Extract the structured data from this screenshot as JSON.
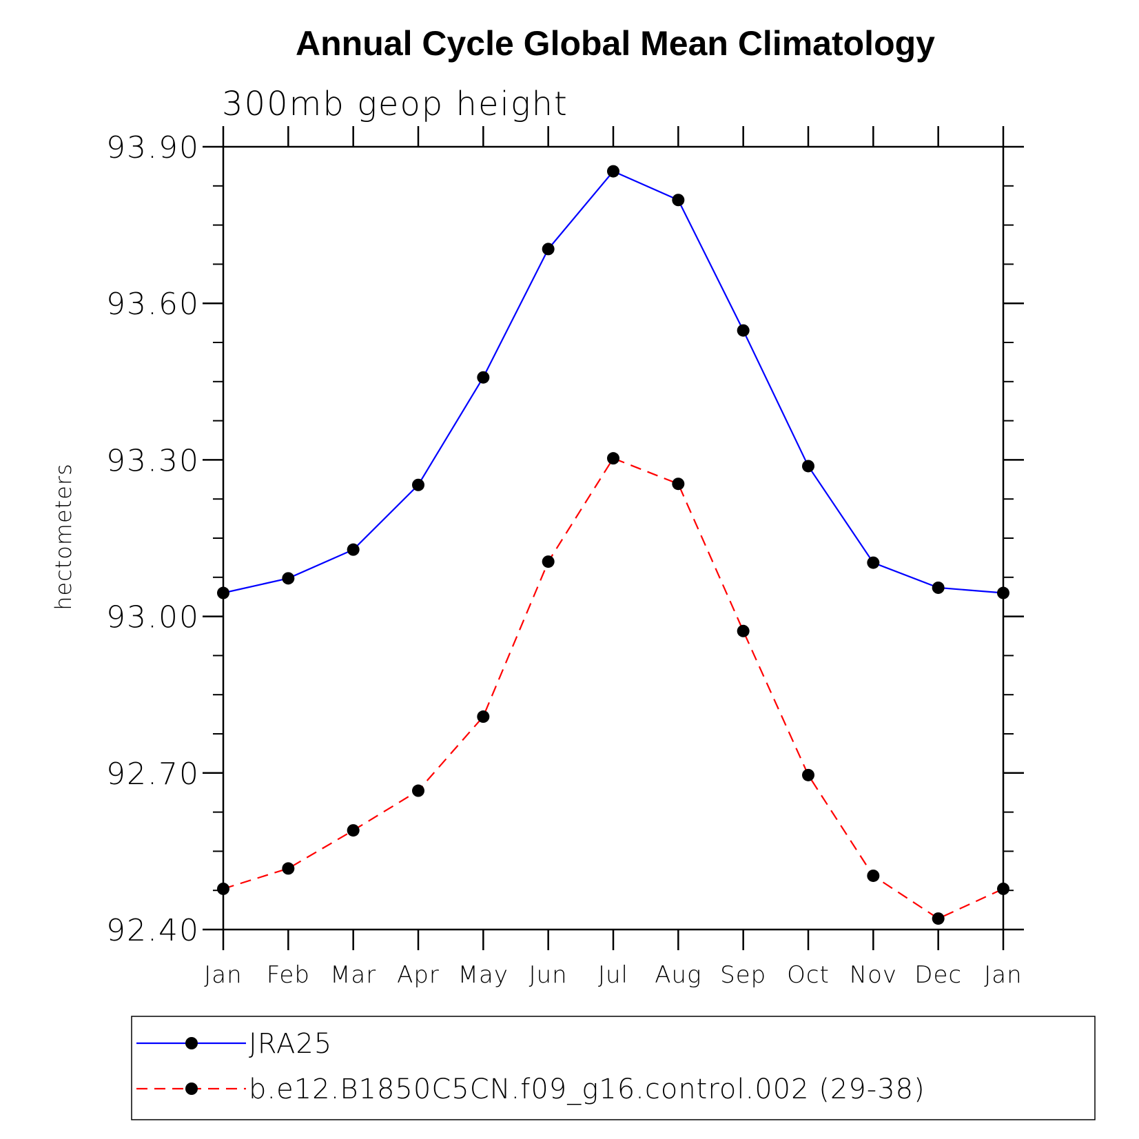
{
  "chart_data": {
    "type": "line",
    "title": "Annual Cycle Global Mean Climatology",
    "subtitle": "300mb geop height",
    "ylabel": "hectometers",
    "xlabel": "",
    "categories": [
      "Jan",
      "Feb",
      "Mar",
      "Apr",
      "May",
      "Jun",
      "Jul",
      "Aug",
      "Sep",
      "Oct",
      "Nov",
      "Dec",
      "Jan"
    ],
    "ylim": [
      92.4,
      93.9
    ],
    "yticks": [
      92.4,
      92.7,
      93.0,
      93.3,
      93.6,
      93.9
    ],
    "ytick_labels": [
      "92.40",
      "92.70",
      "93.00",
      "93.30",
      "93.60",
      "93.90"
    ],
    "grid": false,
    "legend_position": "bottom",
    "series": [
      {
        "name": "JRA25",
        "color": "#0000ff",
        "line_style": "solid",
        "marker": "filled-circle",
        "values": [
          93.045,
          93.073,
          93.128,
          93.252,
          93.458,
          93.704,
          93.853,
          93.798,
          93.548,
          93.288,
          93.103,
          93.055,
          93.045
        ]
      },
      {
        "name": "b.e12.B1850C5CN.f09_g16.control.002 (29-38)",
        "color": "#ff0000",
        "line_style": "dashed",
        "marker": "filled-circle",
        "values": [
          92.478,
          92.517,
          92.59,
          92.666,
          92.808,
          93.105,
          93.303,
          93.254,
          92.972,
          92.696,
          92.503,
          92.421,
          92.478
        ]
      }
    ]
  }
}
